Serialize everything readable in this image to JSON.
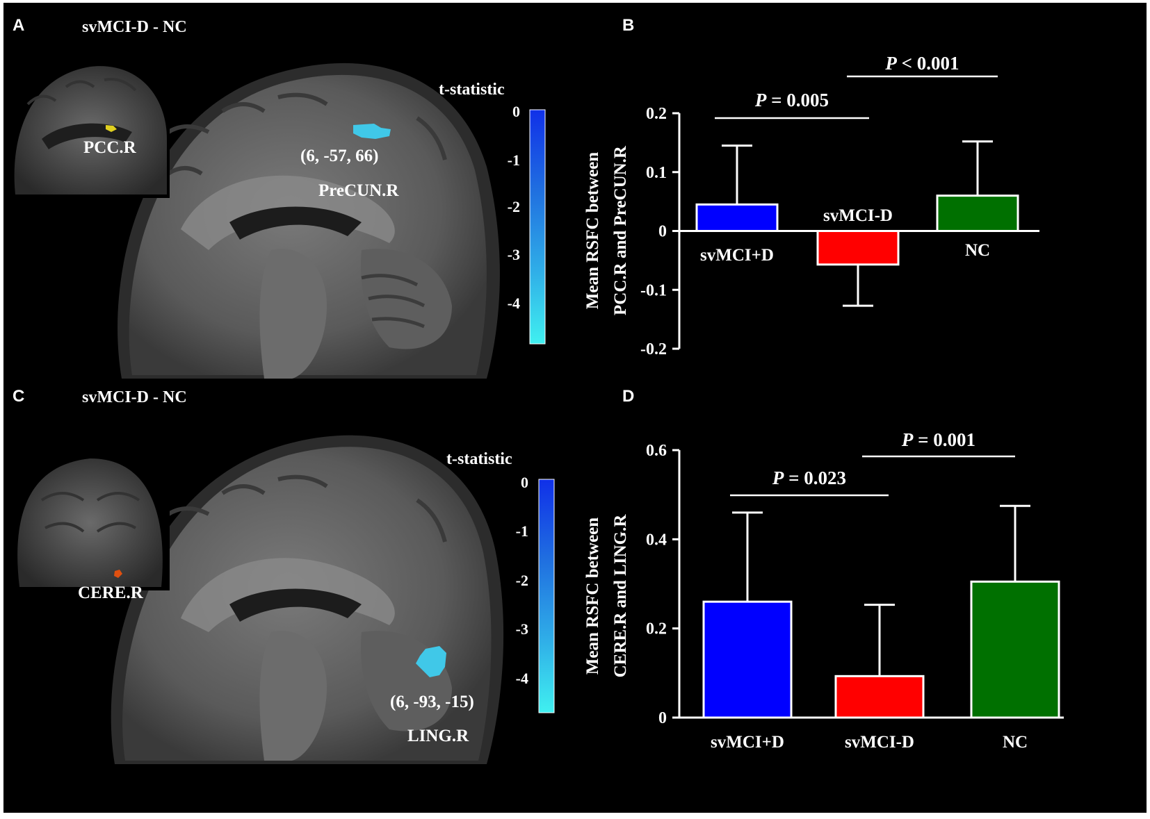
{
  "panels": {
    "A": {
      "label": "A",
      "title": "svMCI-D - NC",
      "inset_region": "PCC.R",
      "coord": "(6, -57, 66)",
      "region": "PreCUN.R",
      "colorbar_title": "t-statistic",
      "colorbar_ticks": [
        "0",
        "-1",
        "-2",
        "-3",
        "-4"
      ]
    },
    "B": {
      "label": "B"
    },
    "C": {
      "label": "C",
      "title": "svMCI-D - NC",
      "inset_region": "CERE.R",
      "coord": "(6, -93, -15)",
      "region": "LING.R",
      "colorbar_title": "t-statistic",
      "colorbar_ticks": [
        "0",
        "-1",
        "-2",
        "-3",
        "-4"
      ]
    },
    "D": {
      "label": "D"
    }
  },
  "colors": {
    "background": "#000000",
    "svMCI+D": "#0000ff",
    "svMCI-D": "#ff0000",
    "NC": "#007000",
    "colorbar_top": "#1030e8",
    "colorbar_bottom": "#40f0f0"
  },
  "chart_data": [
    {
      "type": "bar",
      "panel": "B",
      "categories": [
        "svMCI+D",
        "svMCI-D",
        "NC"
      ],
      "values": [
        0.045,
        -0.057,
        0.06
      ],
      "error_bars": [
        0.1,
        0.07,
        0.092
      ],
      "ylabel_line1": "Mean RSFC between",
      "ylabel_line2": "PCC.R and PreCUN.R",
      "ylim": [
        -0.2,
        0.2
      ],
      "yticks": [
        "0.2",
        "0.1",
        "0",
        "-0.1",
        "-0.2"
      ],
      "significance": [
        {
          "p_prefix": "P",
          "p_rest": " = 0.005",
          "between": [
            "svMCI+D",
            "svMCI-D"
          ]
        },
        {
          "p_prefix": "P",
          "p_rest": " < 0.001",
          "between": [
            "svMCI-D",
            "NC"
          ]
        }
      ]
    },
    {
      "type": "bar",
      "panel": "D",
      "categories": [
        "svMCI+D",
        "svMCI-D",
        "NC"
      ],
      "values": [
        0.26,
        0.093,
        0.305
      ],
      "error_bars": [
        0.2,
        0.16,
        0.17
      ],
      "ylabel_line1": "Mean RSFC between",
      "ylabel_line2": "CERE.R and LING.R",
      "ylim": [
        0,
        0.6
      ],
      "yticks": [
        "0.6",
        "0.4",
        "0.2",
        "0"
      ],
      "significance": [
        {
          "p_prefix": "P",
          "p_rest": " = 0.023",
          "between": [
            "svMCI+D",
            "svMCI-D"
          ]
        },
        {
          "p_prefix": "P",
          "p_rest": " = 0.001",
          "between": [
            "svMCI-D",
            "NC"
          ]
        }
      ]
    }
  ]
}
